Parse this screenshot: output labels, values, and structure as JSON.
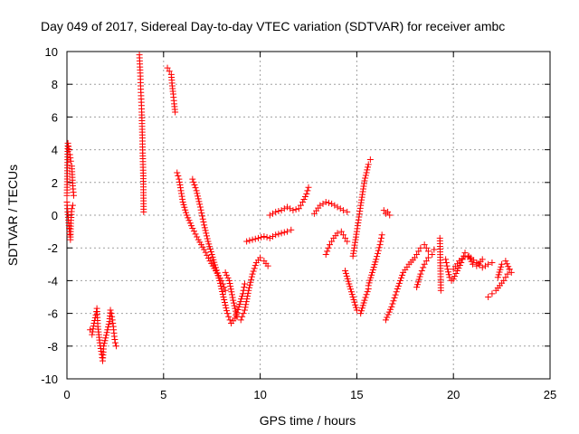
{
  "chart_data": {
    "type": "scatter",
    "title": "Day 049 of 2017, Sidereal Day-to-day VTEC variation (SDTVAR) for receiver ambc",
    "xlabel": "GPS time / hours",
    "ylabel": "SDTVAR / TECUs",
    "xlim": [
      0,
      25
    ],
    "ylim": [
      -10,
      10
    ],
    "xticks": [
      0,
      5,
      10,
      15,
      20,
      25
    ],
    "yticks": [
      -10,
      -8,
      -6,
      -4,
      -2,
      0,
      2,
      4,
      6,
      8,
      10
    ],
    "grid": true,
    "marker": "+",
    "color": "#ff0000",
    "segments": [
      [
        [
          0.0,
          1.2
        ],
        [
          0.05,
          4.4
        ],
        [
          0.1,
          4.0
        ],
        [
          0.15,
          3.7
        ],
        [
          0.2,
          3.3
        ],
        [
          0.25,
          3.0
        ],
        [
          0.3,
          1.8
        ],
        [
          0.35,
          1.2
        ]
      ],
      [
        [
          0.0,
          0.8
        ],
        [
          0.04,
          0.2
        ],
        [
          0.08,
          -0.3
        ],
        [
          0.12,
          -0.8
        ],
        [
          0.15,
          -1.2
        ],
        [
          0.18,
          -1.5
        ],
        [
          0.2,
          -0.5
        ],
        [
          0.25,
          0.4
        ],
        [
          0.3,
          0.6
        ]
      ],
      [
        [
          1.2,
          -7.0
        ],
        [
          1.3,
          -7.3
        ],
        [
          1.4,
          -6.6
        ],
        [
          1.5,
          -6.1
        ],
        [
          1.55,
          -5.7
        ],
        [
          1.6,
          -6.8
        ],
        [
          1.7,
          -7.8
        ],
        [
          1.8,
          -8.5
        ],
        [
          1.85,
          -8.9
        ],
        [
          1.9,
          -8.0
        ],
        [
          2.0,
          -7.5
        ],
        [
          2.1,
          -7.0
        ],
        [
          2.2,
          -6.5
        ],
        [
          2.25,
          -5.8
        ],
        [
          2.3,
          -6.0
        ],
        [
          2.4,
          -6.8
        ],
        [
          2.45,
          -7.4
        ],
        [
          2.5,
          -7.8
        ],
        [
          2.55,
          -8.0
        ]
      ],
      [
        [
          3.75,
          9.8
        ],
        [
          3.8,
          8.5
        ],
        [
          3.82,
          7.7
        ],
        [
          3.85,
          6.9
        ],
        [
          3.87,
          6.3
        ],
        [
          3.9,
          4.9
        ],
        [
          3.92,
          3.8
        ],
        [
          3.95,
          2.4
        ],
        [
          3.97,
          0.2
        ]
      ],
      [
        [
          5.2,
          9.0
        ],
        [
          5.3,
          8.8
        ],
        [
          5.4,
          8.6
        ],
        [
          5.45,
          7.9
        ],
        [
          5.5,
          7.4
        ],
        [
          5.55,
          6.8
        ],
        [
          5.6,
          6.3
        ]
      ],
      [
        [
          5.7,
          2.6
        ],
        [
          5.8,
          2.2
        ],
        [
          5.9,
          1.5
        ],
        [
          6.0,
          0.8
        ],
        [
          6.2,
          0.0
        ],
        [
          6.5,
          -0.8
        ],
        [
          6.8,
          -1.5
        ],
        [
          7.1,
          -2.1
        ],
        [
          7.4,
          -2.8
        ],
        [
          7.7,
          -3.4
        ],
        [
          8.0,
          -4.0
        ],
        [
          8.2,
          -4.6
        ]
      ],
      [
        [
          6.5,
          2.2
        ],
        [
          6.7,
          1.5
        ],
        [
          6.9,
          0.5
        ],
        [
          7.1,
          -0.6
        ],
        [
          7.3,
          -1.6
        ],
        [
          7.5,
          -2.4
        ],
        [
          7.7,
          -3.2
        ],
        [
          7.9,
          -4.0
        ],
        [
          8.1,
          -5.0
        ],
        [
          8.3,
          -6.0
        ],
        [
          8.5,
          -6.6
        ],
        [
          8.7,
          -6.3
        ],
        [
          8.9,
          -5.6
        ],
        [
          9.1,
          -4.8
        ],
        [
          9.2,
          -4.2
        ]
      ],
      [
        [
          8.2,
          -3.5
        ],
        [
          8.4,
          -4.0
        ],
        [
          8.6,
          -5.2
        ],
        [
          8.8,
          -6.2
        ],
        [
          9.0,
          -6.4
        ],
        [
          9.2,
          -5.8
        ],
        [
          9.4,
          -4.6
        ],
        [
          9.6,
          -3.6
        ],
        [
          9.8,
          -2.9
        ],
        [
          10.0,
          -2.6
        ],
        [
          10.2,
          -2.8
        ],
        [
          10.4,
          -3.1
        ]
      ],
      [
        [
          9.3,
          -1.6
        ],
        [
          9.6,
          -1.5
        ],
        [
          9.9,
          -1.4
        ],
        [
          10.2,
          -1.3
        ],
        [
          10.5,
          -1.4
        ],
        [
          10.8,
          -1.2
        ],
        [
          11.1,
          -1.1
        ],
        [
          11.4,
          -1.0
        ],
        [
          11.6,
          -0.9
        ]
      ],
      [
        [
          10.5,
          0.0
        ],
        [
          10.8,
          0.2
        ],
        [
          11.1,
          0.3
        ],
        [
          11.4,
          0.5
        ],
        [
          11.7,
          0.3
        ],
        [
          12.0,
          0.4
        ],
        [
          12.2,
          0.8
        ],
        [
          12.4,
          1.3
        ],
        [
          12.5,
          1.7
        ]
      ],
      [
        [
          12.8,
          0.1
        ],
        [
          13.1,
          0.6
        ],
        [
          13.4,
          0.8
        ],
        [
          13.7,
          0.7
        ],
        [
          14.0,
          0.5
        ],
        [
          14.3,
          0.3
        ],
        [
          14.5,
          0.2
        ]
      ],
      [
        [
          13.4,
          -2.4
        ],
        [
          13.6,
          -1.8
        ],
        [
          13.8,
          -1.4
        ],
        [
          14.0,
          -1.1
        ],
        [
          14.2,
          -1.0
        ],
        [
          14.4,
          -1.4
        ],
        [
          14.5,
          -1.6
        ]
      ],
      [
        [
          14.4,
          -3.4
        ],
        [
          14.6,
          -4.2
        ],
        [
          14.8,
          -5.0
        ],
        [
          15.0,
          -5.8
        ],
        [
          15.2,
          -6.0
        ],
        [
          15.4,
          -5.2
        ],
        [
          15.6,
          -4.5
        ]
      ],
      [
        [
          14.8,
          -2.5
        ],
        [
          15.0,
          -1.0
        ],
        [
          15.2,
          0.6
        ],
        [
          15.4,
          2.1
        ],
        [
          15.6,
          3.1
        ],
        [
          15.7,
          3.4
        ]
      ],
      [
        [
          15.6,
          -4.3
        ],
        [
          15.8,
          -3.5
        ],
        [
          16.0,
          -2.7
        ],
        [
          16.2,
          -1.8
        ],
        [
          16.3,
          -1.2
        ]
      ],
      [
        [
          16.5,
          -6.4
        ],
        [
          16.8,
          -5.6
        ],
        [
          17.1,
          -4.5
        ],
        [
          17.4,
          -3.5
        ],
        [
          17.7,
          -3.0
        ],
        [
          18.0,
          -2.6
        ],
        [
          18.2,
          -2.2
        ]
      ],
      [
        [
          16.4,
          0.3
        ],
        [
          16.5,
          0.1
        ],
        [
          16.6,
          0.2
        ],
        [
          16.7,
          0.0
        ]
      ],
      [
        [
          18.3,
          -2.0
        ],
        [
          18.5,
          -1.8
        ],
        [
          18.7,
          -2.2
        ],
        [
          18.9,
          -2.4
        ],
        [
          19.0,
          -2.1
        ]
      ],
      [
        [
          18.1,
          -4.4
        ],
        [
          18.3,
          -3.6
        ],
        [
          18.5,
          -3.0
        ],
        [
          18.7,
          -2.6
        ]
      ],
      [
        [
          19.3,
          -1.4
        ],
        [
          19.35,
          -4.6
        ]
      ],
      [
        [
          19.6,
          -2.7
        ],
        [
          19.7,
          -3.3
        ],
        [
          19.8,
          -3.8
        ],
        [
          19.9,
          -4.0
        ],
        [
          20.0,
          -3.9
        ],
        [
          20.2,
          -3.4
        ],
        [
          20.4,
          -2.9
        ],
        [
          20.6,
          -2.3
        ],
        [
          20.8,
          -2.5
        ],
        [
          21.0,
          -3.0
        ],
        [
          21.2,
          -3.1
        ],
        [
          21.5,
          -2.7
        ]
      ],
      [
        [
          20.0,
          -3.3
        ],
        [
          20.3,
          -2.8
        ],
        [
          20.6,
          -2.5
        ],
        [
          20.9,
          -2.6
        ],
        [
          21.2,
          -2.9
        ],
        [
          21.5,
          -3.2
        ],
        [
          21.8,
          -3.0
        ],
        [
          22.0,
          -2.9
        ]
      ],
      [
        [
          21.8,
          -5.0
        ],
        [
          22.0,
          -4.8
        ],
        [
          22.2,
          -4.6
        ],
        [
          22.4,
          -4.3
        ],
        [
          22.6,
          -4.0
        ],
        [
          22.8,
          -3.6
        ],
        [
          22.9,
          -3.3
        ]
      ],
      [
        [
          22.3,
          -3.8
        ],
        [
          22.5,
          -3.0
        ],
        [
          22.7,
          -2.8
        ],
        [
          22.9,
          -3.3
        ],
        [
          23.0,
          -3.5
        ]
      ]
    ]
  }
}
